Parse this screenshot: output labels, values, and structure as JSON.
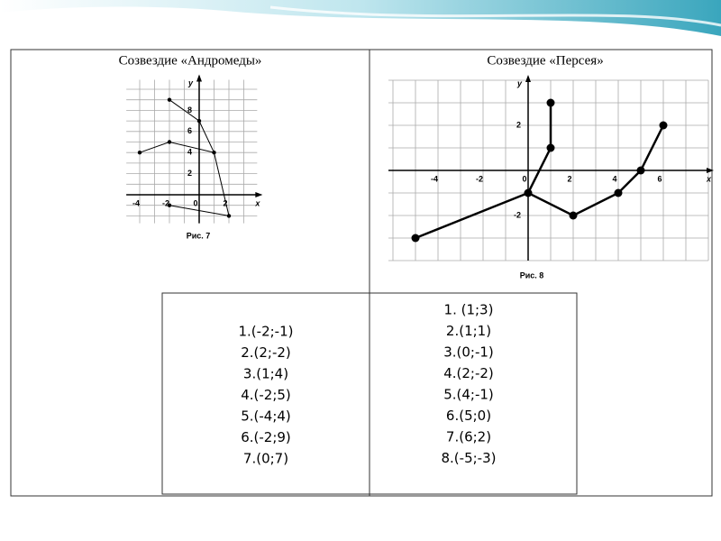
{
  "slide": {
    "columns": [
      {
        "title": "Созвездие «Андромеды»",
        "figure": {
          "caption": "Рис. 7",
          "x_label": "x",
          "y_label": "y",
          "xticks": [
            -4,
            -2,
            0,
            2
          ],
          "yticks": [
            2,
            4,
            6,
            8
          ],
          "points": [
            [
              -2,
              -1
            ],
            [
              2,
              -2
            ],
            [
              1,
              4
            ],
            [
              -2,
              5
            ],
            [
              -4,
              4
            ],
            [
              -2,
              9
            ],
            [
              0,
              7
            ]
          ]
        },
        "list": [
          "1.(-2;-1)",
          "2.(2;-2)",
          "3.(1;4)",
          "4.(-2;5)",
          "5.(-4;4)",
          "6.(-2;9)",
          "7.(0;7)"
        ]
      },
      {
        "title": "Созвездие «Персея»",
        "figure": {
          "caption": "Рис. 8",
          "x_label": "x",
          "y_label": "y",
          "xticks": [
            -4,
            -2,
            0,
            2,
            4,
            6
          ],
          "yticks": [
            2,
            -2
          ],
          "points": [
            [
              1,
              3
            ],
            [
              1,
              1
            ],
            [
              0,
              -1
            ],
            [
              2,
              -2
            ],
            [
              4,
              -1
            ],
            [
              5,
              0
            ],
            [
              6,
              2
            ],
            [
              -5,
              -3
            ]
          ]
        },
        "list": [
          "1. (1;3)",
          "2.(1;1)",
          "3.(0;-1)",
          "4.(2;-2)",
          "5.(4;-1)",
          "6.(5;0)",
          "7.(6;2)",
          "8.(-5;-3)"
        ]
      }
    ]
  }
}
